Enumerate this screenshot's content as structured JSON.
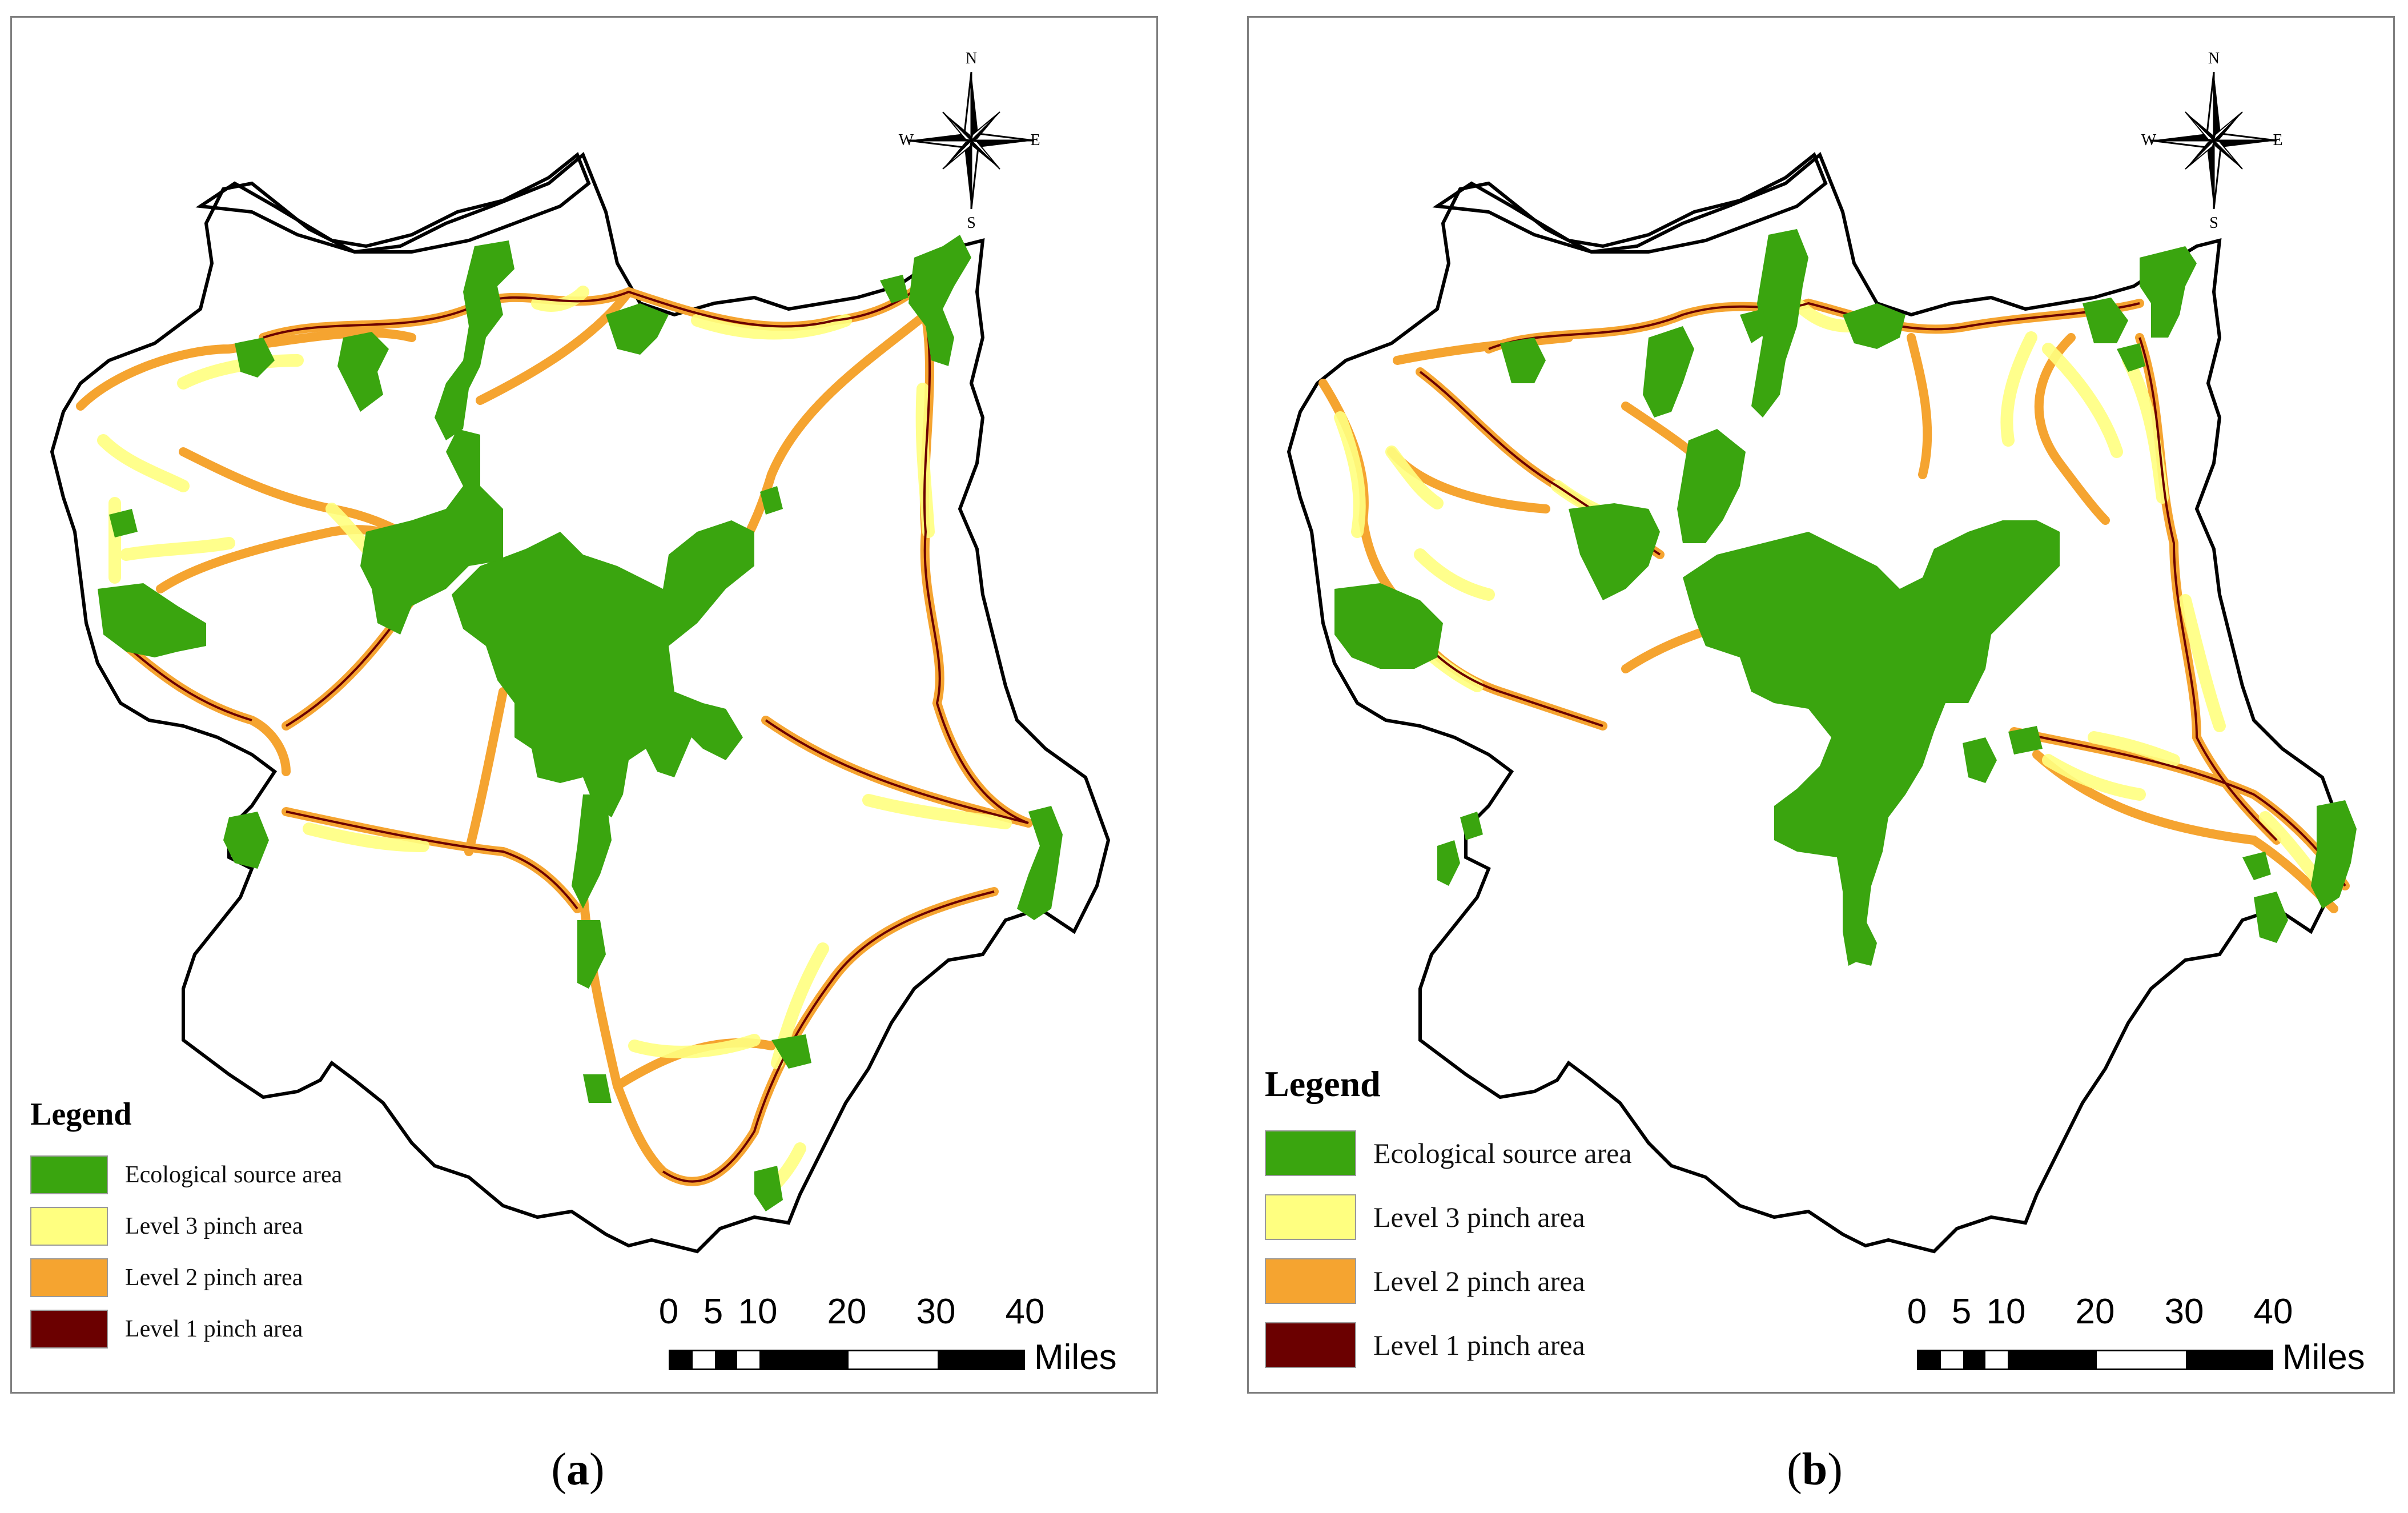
{
  "panels": [
    {
      "id": "a",
      "caption": "a",
      "legend": {
        "title": "Legend",
        "items": [
          {
            "label": "Ecological source area",
            "color": "#3aa50f"
          },
          {
            "label": "Level 3 pinch area",
            "color": "#ffff80"
          },
          {
            "label": "Level 2 pinch area",
            "color": "#f5a430"
          },
          {
            "label": "Level 1 pinch area",
            "color": "#6b0000"
          }
        ]
      },
      "scale_bar": {
        "ticks": [
          "0",
          "5",
          "10",
          "20",
          "30",
          "40"
        ],
        "unit": "Miles"
      },
      "compass": {
        "n": "N",
        "s": "S",
        "e": "E",
        "w": "W"
      }
    },
    {
      "id": "b",
      "caption": "b",
      "legend": {
        "title": "Legend",
        "items": [
          {
            "label": "Ecological source area",
            "color": "#3aa50f"
          },
          {
            "label": "Level 3 pinch area",
            "color": "#ffff80"
          },
          {
            "label": "Level 2 pinch area",
            "color": "#f5a430"
          },
          {
            "label": "Level 1 pinch area",
            "color": "#6b0000"
          }
        ]
      },
      "scale_bar": {
        "ticks": [
          "0",
          "5",
          "10",
          "20",
          "30",
          "40"
        ],
        "unit": "Miles"
      },
      "compass": {
        "n": "N",
        "s": "S",
        "e": "E",
        "w": "W"
      }
    }
  ]
}
